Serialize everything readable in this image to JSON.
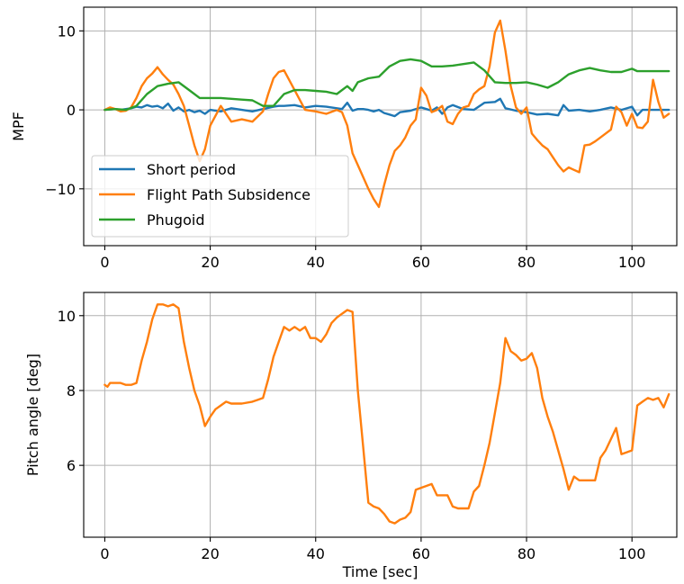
{
  "chart_data": [
    {
      "type": "line",
      "title": "",
      "xlabel": "",
      "ylabel": "MPF",
      "xlim": [
        -4,
        108.5
      ],
      "ylim": [
        -17.2,
        13
      ],
      "xticks": [
        0,
        20,
        40,
        60,
        80,
        100
      ],
      "xtick_labels": [
        "0",
        "20",
        "40",
        "60",
        "80",
        "100"
      ],
      "yticks": [
        10,
        0,
        -10
      ],
      "ytick_labels": [
        "10",
        "0",
        "−10"
      ],
      "grid": true,
      "legend": {
        "placement": "lower-left",
        "entries": [
          "Short period",
          "Flight Path Subsidence",
          "Phugoid"
        ]
      },
      "series": [
        {
          "name": "Short period",
          "color": "#1f77b4",
          "x": [
            0,
            2,
            3,
            5,
            6,
            7,
            8,
            9,
            10,
            11,
            12,
            13,
            14,
            15,
            16,
            17,
            18,
            19,
            20,
            22,
            24,
            26,
            28,
            30,
            32,
            33,
            34,
            36,
            38,
            40,
            42,
            44,
            45,
            46,
            47,
            48,
            49,
            50,
            51,
            52,
            53,
            54,
            55,
            56,
            58,
            60,
            61,
            62,
            63,
            64,
            65,
            66,
            68,
            70,
            72,
            74,
            75,
            76,
            78,
            80,
            82,
            84,
            86,
            87,
            88,
            90,
            92,
            94,
            96,
            98,
            100,
            101,
            102,
            104,
            107
          ],
          "y": [
            0,
            0.1,
            0,
            0.2,
            0.4,
            0.3,
            0.6,
            0.4,
            0.5,
            0.2,
            0.8,
            -0.1,
            0.3,
            -0.2,
            0,
            -0.3,
            -0.1,
            -0.5,
            0,
            -0.2,
            0.2,
            0,
            -0.2,
            0.1,
            0.4,
            0.5,
            0.5,
            0.6,
            0.3,
            0.5,
            0.4,
            0.2,
            0.1,
            0.9,
            -0.1,
            0.1,
            0.1,
            0,
            -0.2,
            0,
            -0.4,
            -0.6,
            -0.8,
            -0.3,
            -0.1,
            0.3,
            0.1,
            -0.1,
            0.3,
            -0.5,
            0.3,
            0.6,
            0.1,
            0,
            0.9,
            1,
            1.4,
            0.2,
            -0.1,
            -0.3,
            -0.6,
            -0.5,
            -0.7,
            0.6,
            -0.1,
            0,
            -0.2,
            0,
            0.3,
            0,
            0.4,
            -0.7,
            0,
            0,
            0
          ]
        },
        {
          "name": "Flight Path Subsidence",
          "color": "#ff7f0e",
          "x": [
            0,
            1,
            2,
            3,
            4,
            5,
            6,
            7,
            8,
            9,
            10,
            11,
            12,
            13,
            14,
            15,
            16,
            17,
            18,
            19,
            20,
            22,
            24,
            26,
            28,
            30,
            31,
            32,
            33,
            34,
            36,
            38,
            40,
            42,
            44,
            45,
            46,
            47,
            48,
            49,
            50,
            51,
            52,
            53,
            54,
            55,
            56,
            57,
            58,
            59,
            60,
            61,
            62,
            63,
            64,
            65,
            66,
            67,
            68,
            69,
            70,
            71,
            72,
            73,
            74,
            75,
            76,
            77,
            78,
            79,
            80,
            81,
            82,
            83,
            84,
            85,
            86,
            87,
            88,
            89,
            90,
            91,
            92,
            93,
            94,
            95,
            96,
            97,
            98,
            99,
            100,
            101,
            102,
            103,
            104,
            105,
            106,
            107
          ],
          "y": [
            0,
            0.3,
            0.1,
            -0.2,
            -0.1,
            0.3,
            1.5,
            3,
            4,
            4.6,
            5.4,
            4.5,
            3.8,
            3.2,
            2,
            0.5,
            -2,
            -4.5,
            -6.5,
            -5,
            -2,
            0.5,
            -1.5,
            -1.2,
            -1.5,
            -0.2,
            2,
            4,
            4.8,
            5,
            2.5,
            0,
            -0.2,
            -0.5,
            0,
            -0.3,
            -2,
            -5.5,
            -7,
            -8.5,
            -10,
            -11.3,
            -12.3,
            -9.5,
            -7,
            -5.2,
            -4.5,
            -3.5,
            -2,
            -1.2,
            2.8,
            1.8,
            -0.3,
            0,
            0.5,
            -1.5,
            -1.8,
            -0.5,
            0.3,
            0.5,
            2,
            2.6,
            3,
            5.5,
            9.8,
            11.3,
            7.5,
            3,
            0.3,
            -0.5,
            0.3,
            -3,
            -3.8,
            -4.5,
            -5,
            -6,
            -7,
            -7.8,
            -7.3,
            -7.6,
            -7.9,
            -4.5,
            -4.4,
            -4,
            -3.5,
            -3,
            -2.5,
            0.4,
            -0.3,
            -2,
            -0.5,
            -2.2,
            -2.3,
            -1.5,
            3.8,
            1,
            -1,
            -0.5
          ]
        },
        {
          "name": "Phugoid",
          "color": "#2ca02c",
          "x": [
            0,
            2,
            4,
            6,
            8,
            10,
            12,
            14,
            16,
            18,
            20,
            22,
            24,
            26,
            28,
            30,
            32,
            34,
            36,
            38,
            40,
            42,
            44,
            46,
            47,
            48,
            50,
            52,
            54,
            56,
            58,
            60,
            62,
            64,
            66,
            68,
            70,
            72,
            74,
            76,
            78,
            80,
            82,
            84,
            86,
            88,
            90,
            92,
            94,
            96,
            98,
            100,
            101,
            104,
            107
          ],
          "y": [
            0,
            0.1,
            0,
            0.5,
            2,
            3,
            3.3,
            3.5,
            2.5,
            1.5,
            1.5,
            1.5,
            1.4,
            1.3,
            1.2,
            0.5,
            0.5,
            2,
            2.5,
            2.5,
            2.4,
            2.3,
            2,
            3,
            2.4,
            3.5,
            4,
            4.2,
            5.5,
            6.2,
            6.4,
            6.2,
            5.5,
            5.5,
            5.6,
            5.8,
            6,
            5,
            3.5,
            3.4,
            3.4,
            3.5,
            3.2,
            2.8,
            3.5,
            4.5,
            5,
            5.3,
            5,
            4.8,
            4.8,
            5.2,
            4.9,
            4.9,
            4.9
          ]
        }
      ]
    },
    {
      "type": "line",
      "title": "",
      "xlabel": "Time [sec]",
      "ylabel": "Pitch angle [deg]",
      "xlim": [
        -4,
        108.5
      ],
      "ylim": [
        4.08,
        10.62
      ],
      "xticks": [
        0,
        20,
        40,
        60,
        80,
        100
      ],
      "xtick_labels": [
        "0",
        "20",
        "40",
        "60",
        "80",
        "100"
      ],
      "yticks": [
        10,
        8,
        6
      ],
      "ytick_labels": [
        "10",
        "8",
        "6"
      ],
      "grid": true,
      "series": [
        {
          "color": "#ff7f0e",
          "x": [
            0,
            0.5,
            1,
            2,
            3,
            4,
            5,
            6,
            7,
            8,
            9,
            10,
            11,
            12,
            13,
            14,
            15,
            16,
            17,
            18,
            19,
            20,
            21,
            22,
            23,
            24,
            26,
            28,
            29,
            30,
            31,
            32,
            33,
            34,
            35,
            36,
            37,
            38,
            39,
            40,
            41,
            42,
            43,
            44,
            45,
            46,
            47,
            48,
            49,
            50,
            51,
            52,
            53,
            54,
            55,
            56,
            57,
            58,
            59,
            60,
            61,
            62,
            63,
            64,
            65,
            66,
            67,
            68,
            69,
            70,
            71,
            72,
            73,
            74,
            75,
            76,
            77,
            78,
            79,
            80,
            81,
            82,
            83,
            84,
            85,
            86,
            87,
            88,
            89,
            90,
            91,
            92,
            93,
            94,
            95,
            96,
            97,
            98,
            99,
            100,
            101,
            102,
            103,
            104,
            105,
            106,
            107
          ],
          "y": [
            8.15,
            8.1,
            8.2,
            8.2,
            8.2,
            8.15,
            8.15,
            8.2,
            8.8,
            9.3,
            9.9,
            10.3,
            10.3,
            10.25,
            10.3,
            10.2,
            9.3,
            8.6,
            8,
            7.6,
            7.05,
            7.3,
            7.5,
            7.6,
            7.7,
            7.65,
            7.65,
            7.7,
            7.75,
            7.8,
            8.3,
            8.9,
            9.3,
            9.7,
            9.6,
            9.7,
            9.6,
            9.7,
            9.4,
            9.4,
            9.3,
            9.5,
            9.8,
            9.95,
            10.05,
            10.15,
            10.1,
            8,
            6.5,
            5,
            4.9,
            4.85,
            4.7,
            4.5,
            4.45,
            4.55,
            4.6,
            4.75,
            5.35,
            5.4,
            5.45,
            5.5,
            5.2,
            5.2,
            5.2,
            4.9,
            4.85,
            4.85,
            4.85,
            5.3,
            5.45,
            6,
            6.6,
            7.4,
            8.2,
            9.4,
            9.05,
            8.95,
            8.8,
            8.85,
            9.0,
            8.6,
            7.8,
            7.3,
            6.9,
            6.4,
            5.9,
            5.35,
            5.7,
            5.6,
            5.6,
            5.6,
            5.6,
            6.2,
            6.4,
            6.7,
            7,
            6.3,
            6.35,
            6.4,
            7.6,
            7.7,
            7.8,
            7.75,
            7.8,
            7.55,
            7.9
          ]
        }
      ]
    }
  ]
}
